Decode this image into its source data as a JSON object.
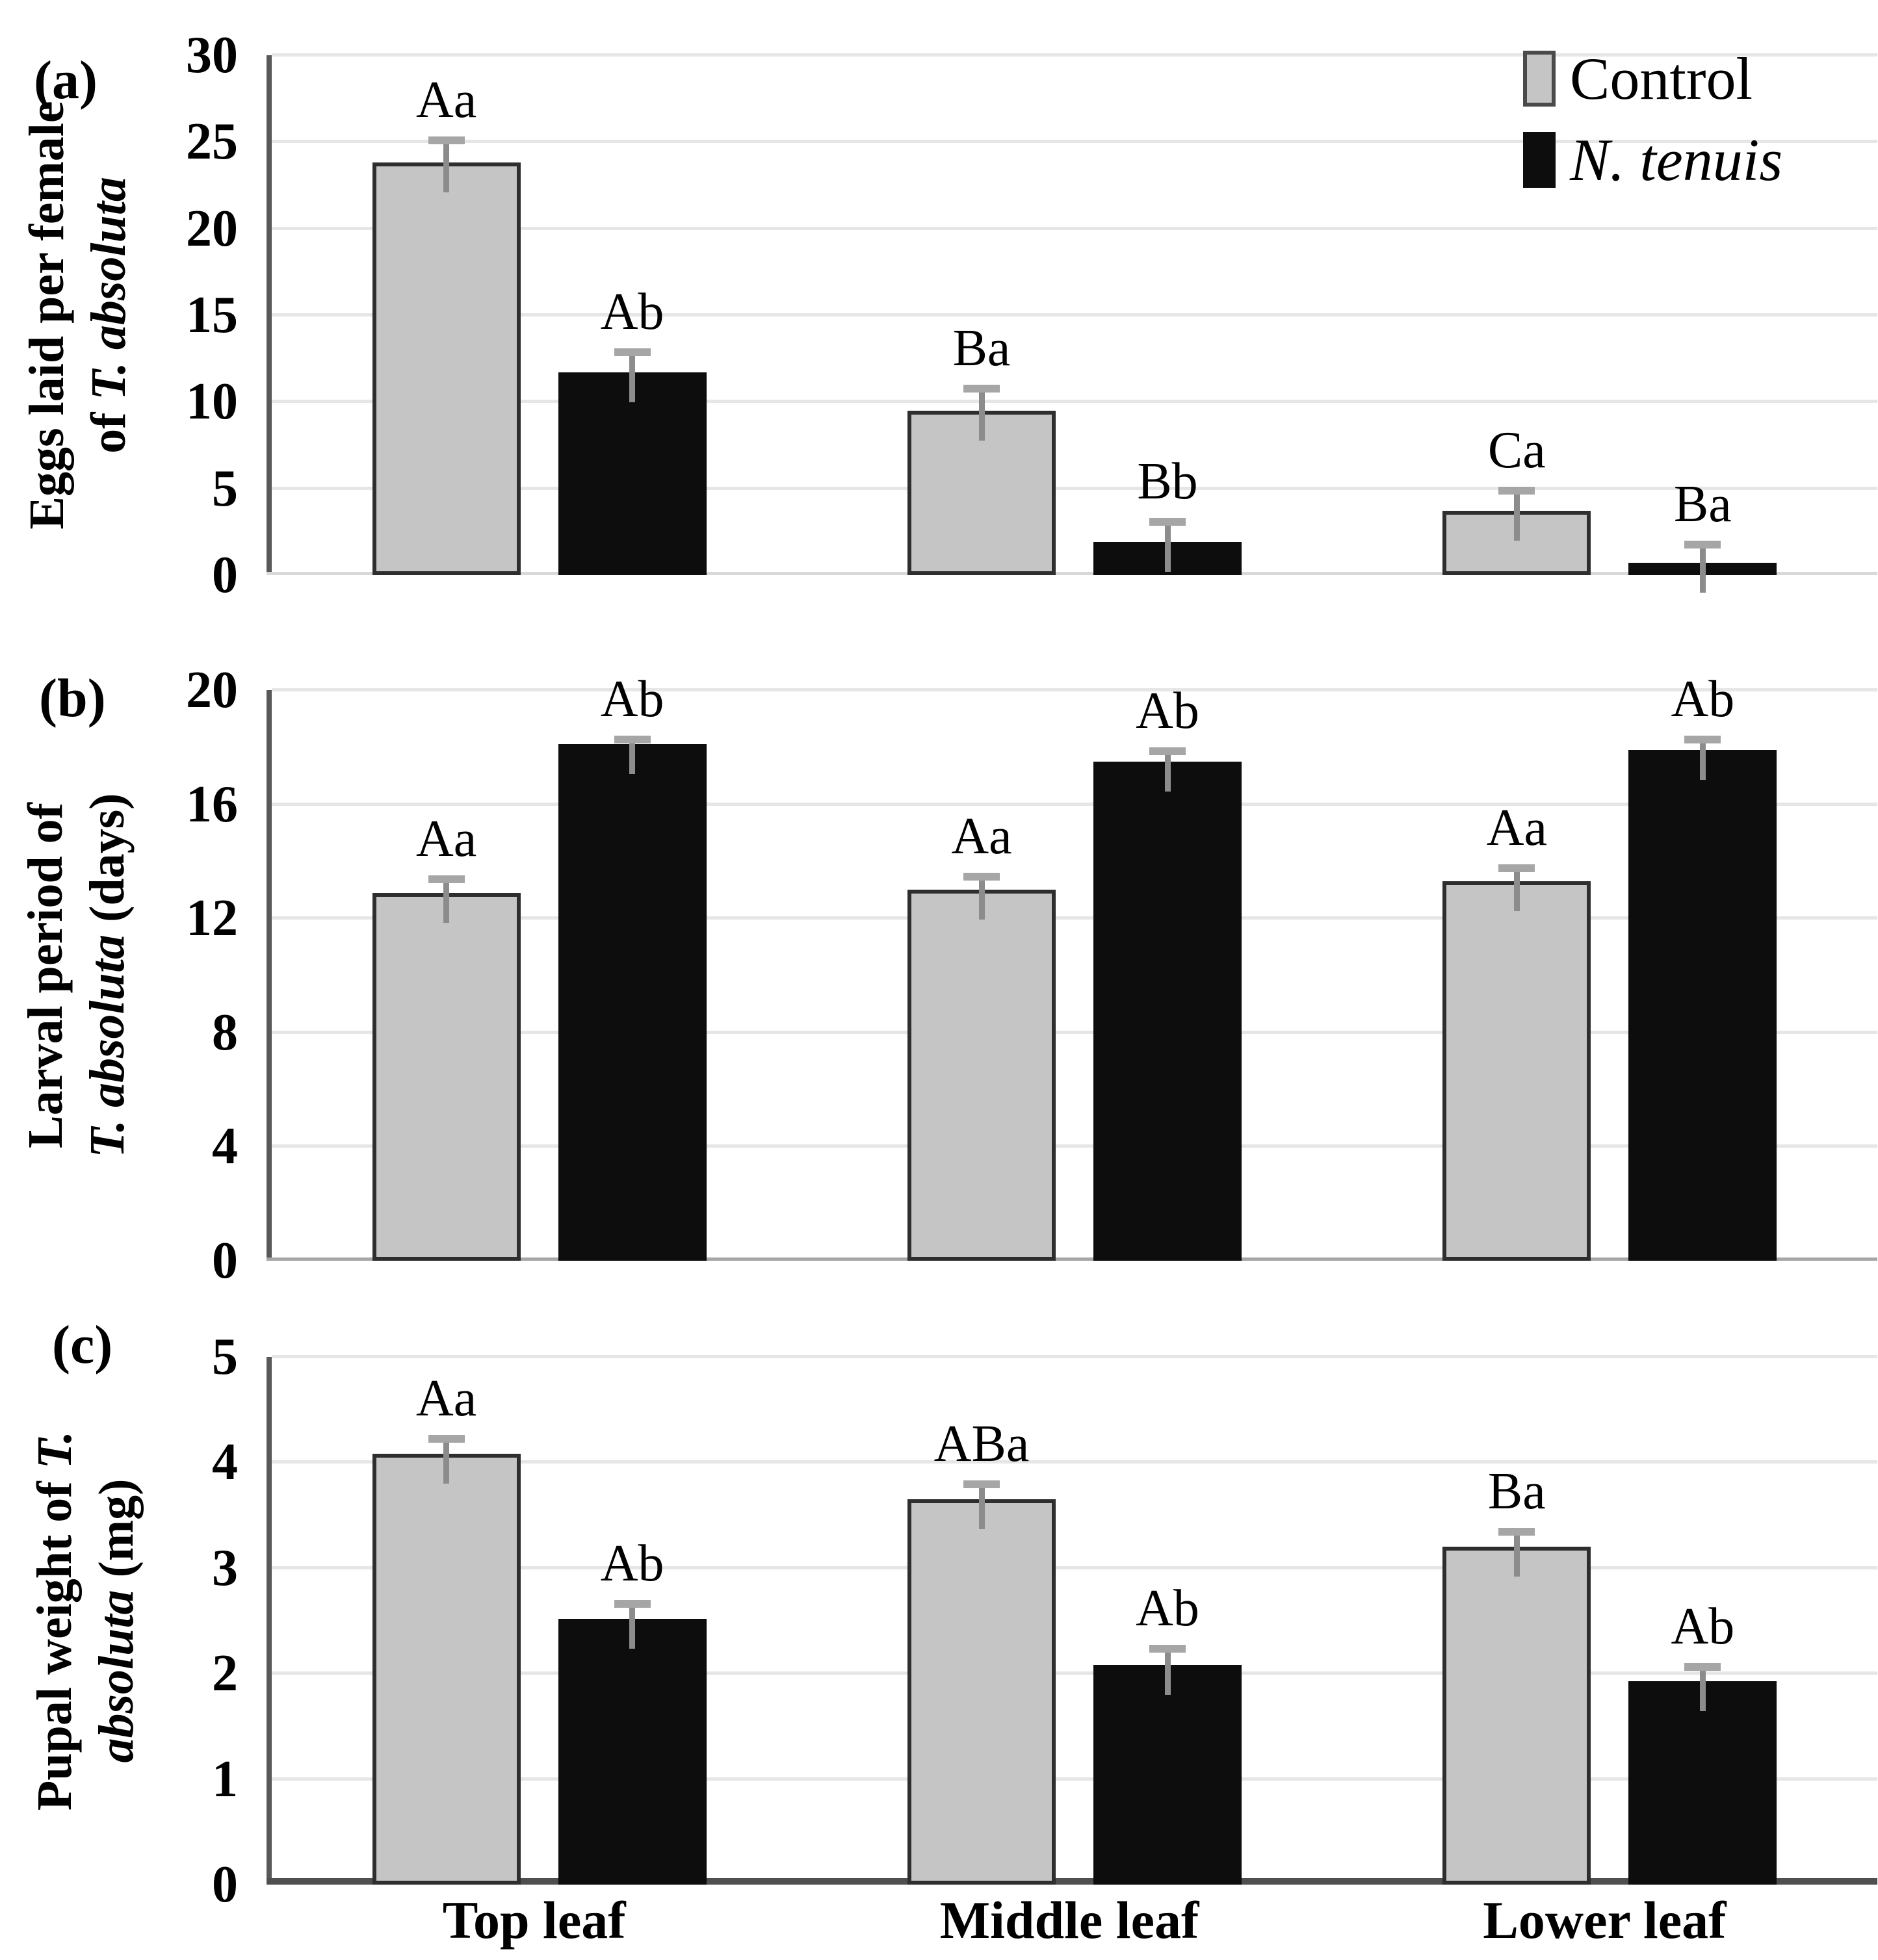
{
  "figure": {
    "x_categories": [
      "Top leaf",
      "Middle leaf",
      "Lower leaf"
    ],
    "legend": {
      "items": [
        {
          "label": "Control",
          "italic": false,
          "series": "control"
        },
        {
          "label": "N. tenuis",
          "italic": true,
          "series": "treatment"
        }
      ]
    },
    "colors": {
      "control_fill": "#c5c5c5",
      "control_border": "#2e2e2e",
      "treatment_fill": "#0d0d0d",
      "error_line": "#8c8c8c",
      "error_cap": "#a6a6a6",
      "gridline": "#e6e6e6",
      "axis_line": "#595959",
      "baseline_light": "#d9d9d9",
      "baseline_mid": "#a6a6a6",
      "baseline_dark": "#4f4f4f",
      "text": "#000000"
    }
  },
  "chart_data": [
    {
      "type": "bar",
      "panel_label": "(a)",
      "ylabel_plain": "Eggs laid per female of T. absoluta",
      "ylabel_lines": [
        [
          {
            "t": "Eggs laid per female",
            "i": false
          }
        ],
        [
          {
            "t": "of ",
            "i": false
          },
          {
            "t": "T. absoluta",
            "i": true
          }
        ]
      ],
      "ylim": [
        0,
        30
      ],
      "yticks": [
        0,
        5,
        10,
        15,
        20,
        25,
        30
      ],
      "grid": true,
      "legend_position": "top-right",
      "categories": [
        "Top leaf",
        "Middle leaf",
        "Lower leaf"
      ],
      "series": [
        {
          "name": "Control",
          "values": [
            23.8,
            9.5,
            3.7
          ],
          "errors": [
            1.5,
            1.5,
            1.4
          ],
          "bar_labels": [
            "Aa",
            "Ba",
            "Ca"
          ]
        },
        {
          "name": "N. tenuis",
          "values": [
            11.7,
            1.9,
            0.7
          ],
          "errors": [
            1.4,
            1.4,
            1.3
          ],
          "bar_labels": [
            "Ab",
            "Bb",
            "Ba"
          ]
        }
      ]
    },
    {
      "type": "bar",
      "panel_label": "(b)",
      "ylabel_plain": "Larval period of T. absoluta (days)",
      "ylabel_lines": [
        [
          {
            "t": "Larval period of",
            "i": false
          }
        ],
        [
          {
            "t": "T. absoluta",
            "i": true
          },
          {
            "t": " (days)",
            "i": false
          }
        ]
      ],
      "ylim": [
        0,
        20
      ],
      "yticks": [
        0,
        4,
        8,
        12,
        16,
        20
      ],
      "grid": true,
      "legend_position": null,
      "categories": [
        "Top leaf",
        "Middle leaf",
        "Lower leaf"
      ],
      "series": [
        {
          "name": "Control",
          "values": [
            12.9,
            13.0,
            13.3
          ],
          "errors": [
            0.6,
            0.6,
            0.6
          ],
          "bar_labels": [
            "Aa",
            "Aa",
            "Aa"
          ]
        },
        {
          "name": "N. tenuis",
          "values": [
            18.1,
            17.5,
            17.9
          ],
          "errors": [
            0.3,
            0.5,
            0.5
          ],
          "bar_labels": [
            "Ab",
            "Ab",
            "Ab"
          ]
        }
      ]
    },
    {
      "type": "bar",
      "panel_label": "(c)",
      "ylabel_plain": "Pupal weight of T. absoluta (mg)",
      "ylabel_lines": [
        [
          {
            "t": "Pupal weight of ",
            "i": false
          },
          {
            "t": "T.",
            "i": true
          }
        ],
        [
          {
            "t": "absoluta",
            "i": true
          },
          {
            "t": " (mg)",
            "i": false
          }
        ]
      ],
      "ylim": [
        0,
        5
      ],
      "yticks": [
        0,
        1,
        2,
        3,
        4,
        5
      ],
      "grid": true,
      "legend_position": null,
      "categories": [
        "Top leaf",
        "Middle leaf",
        "Lower leaf"
      ],
      "series": [
        {
          "name": "Control",
          "values": [
            4.08,
            3.65,
            3.2
          ],
          "errors": [
            0.18,
            0.18,
            0.18
          ],
          "bar_labels": [
            "Aa",
            "ABa",
            "Ba"
          ]
        },
        {
          "name": "N. tenuis",
          "values": [
            2.52,
            2.08,
            1.93
          ],
          "errors": [
            0.18,
            0.19,
            0.17
          ],
          "bar_labels": [
            "Ab",
            "Ab",
            "Ab"
          ]
        }
      ]
    }
  ]
}
